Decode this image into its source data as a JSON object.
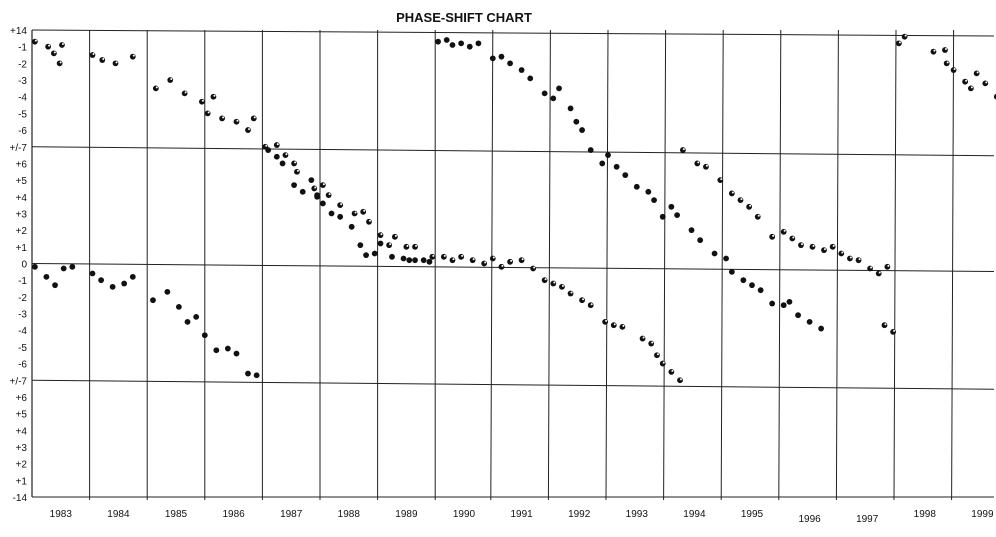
{
  "chart_data": {
    "type": "scatter",
    "title": "PHASE-SHIFT CHART",
    "xlabel": "",
    "ylabel": "",
    "x_tick_labels": [
      "1983",
      "1984",
      "1985",
      "1986",
      "1987",
      "1988",
      "1989",
      "1990",
      "1991",
      "1992",
      "1993",
      "1994",
      "1995",
      "1996",
      "1997",
      "1998",
      "1999"
    ],
    "y_tick_labels": [
      "+14",
      "-1",
      "-2",
      "-3",
      "-4",
      "-5",
      "-6",
      "+/-7",
      "+6",
      "+5",
      "+4",
      "+3",
      "+2",
      "+1",
      "0",
      "-1",
      "-2",
      "-3",
      "-4",
      "-5",
      "-6",
      "+/-7",
      "+6",
      "+5",
      "+4",
      "+3",
      "+2",
      "+1",
      "-14"
    ],
    "xlim": [
      1983,
      2000
    ],
    "ylim": [
      -14,
      14
    ],
    "grid": true,
    "series": [
      {
        "values": [
          [
            1983.05,
            13.3
          ],
          [
            1983.28,
            13.0
          ],
          [
            1983.38,
            12.6
          ],
          [
            1983.52,
            13.1
          ],
          [
            1983.48,
            12.0
          ],
          [
            1984.05,
            12.5
          ],
          [
            1984.22,
            12.2
          ],
          [
            1984.45,
            12.0
          ],
          [
            1984.75,
            12.4
          ],
          [
            1985.15,
            10.5
          ],
          [
            1985.4,
            11.0
          ],
          [
            1985.65,
            10.2
          ],
          [
            1985.95,
            9.7
          ],
          [
            1986.05,
            9.0
          ],
          [
            1986.15,
            10.0
          ],
          [
            1986.3,
            8.7
          ],
          [
            1986.55,
            8.5
          ],
          [
            1986.75,
            8.0
          ],
          [
            1986.85,
            8.7
          ],
          [
            1987.05,
            7.0
          ],
          [
            1987.25,
            7.1
          ],
          [
            1987.4,
            6.5
          ],
          [
            1987.55,
            6.0
          ],
          [
            1987.6,
            5.5
          ],
          [
            1987.9,
            4.5
          ],
          [
            1987.95,
            4.0
          ],
          [
            1988.05,
            4.7
          ],
          [
            1988.15,
            4.1
          ],
          [
            1988.35,
            3.5
          ],
          [
            1988.6,
            3.0
          ],
          [
            1988.75,
            3.1
          ],
          [
            1988.85,
            2.5
          ],
          [
            1989.05,
            1.7
          ],
          [
            1989.2,
            1.1
          ],
          [
            1989.3,
            1.6
          ],
          [
            1989.5,
            1.0
          ],
          [
            1989.65,
            1.0
          ],
          [
            1989.95,
            0.4
          ],
          [
            1990.15,
            0.4
          ],
          [
            1990.3,
            0.2
          ],
          [
            1990.45,
            0.4
          ],
          [
            1990.65,
            0.2
          ],
          [
            1990.85,
            0.0
          ],
          [
            1991.0,
            0.3
          ],
          [
            1991.15,
            -0.2
          ],
          [
            1991.3,
            0.1
          ],
          [
            1991.5,
            0.2
          ],
          [
            1991.7,
            -0.3
          ],
          [
            1991.9,
            -1.0
          ],
          [
            1992.05,
            -1.2
          ],
          [
            1992.2,
            -1.4
          ],
          [
            1992.35,
            -1.8
          ],
          [
            1992.55,
            -2.2
          ],
          [
            1992.7,
            -2.5
          ],
          [
            1992.95,
            -3.5
          ],
          [
            1993.1,
            -3.7
          ],
          [
            1993.25,
            -3.8
          ],
          [
            1993.6,
            -4.5
          ],
          [
            1993.75,
            -4.8
          ],
          [
            1993.85,
            -5.5
          ],
          [
            1993.95,
            -6.0
          ],
          [
            1994.1,
            -6.5
          ],
          [
            1994.25,
            -7.0
          ],
          [
            1994.3,
            6.8
          ],
          [
            1994.55,
            6.0
          ],
          [
            1994.7,
            5.8
          ],
          [
            1994.95,
            5.0
          ],
          [
            1995.15,
            4.2
          ],
          [
            1995.3,
            3.8
          ],
          [
            1995.45,
            3.4
          ],
          [
            1995.6,
            2.8
          ],
          [
            1995.85,
            1.6
          ],
          [
            1996.05,
            1.9
          ],
          [
            1996.2,
            1.5
          ],
          [
            1996.35,
            1.1
          ],
          [
            1996.55,
            1.0
          ],
          [
            1996.75,
            0.8
          ],
          [
            1996.9,
            1.0
          ],
          [
            1997.05,
            0.6
          ],
          [
            1997.2,
            0.3
          ],
          [
            1997.35,
            0.2
          ],
          [
            1997.55,
            -0.3
          ],
          [
            1997.7,
            -0.6
          ],
          [
            1997.85,
            -0.2
          ],
          [
            1997.8,
            -3.7
          ],
          [
            1997.95,
            -4.1
          ],
          [
            1998.05,
            13.2
          ],
          [
            1998.15,
            13.6
          ],
          [
            1998.65,
            12.7
          ],
          [
            1998.85,
            12.8
          ],
          [
            1998.88,
            12.0
          ],
          [
            1999.0,
            11.6
          ],
          [
            1999.2,
            10.9
          ],
          [
            1999.3,
            10.5
          ],
          [
            1999.4,
            11.4
          ],
          [
            1999.55,
            10.8
          ],
          [
            1999.75,
            10.0
          ],
          [
            1999.9,
            8.9
          ]
        ]
      },
      {
        "values": [
          [
            1983.05,
            -0.2
          ],
          [
            1983.25,
            -0.8
          ],
          [
            1983.4,
            -1.3
          ],
          [
            1983.55,
            -0.3
          ],
          [
            1983.7,
            -0.2
          ],
          [
            1984.05,
            -0.6
          ],
          [
            1984.2,
            -1.0
          ],
          [
            1984.4,
            -1.4
          ],
          [
            1984.6,
            -1.2
          ],
          [
            1984.75,
            -0.8
          ],
          [
            1985.1,
            -2.2
          ],
          [
            1985.35,
            -1.7
          ],
          [
            1985.55,
            -2.6
          ],
          [
            1985.7,
            -3.5
          ],
          [
            1985.85,
            -3.2
          ],
          [
            1986.0,
            -4.3
          ],
          [
            1986.2,
            -5.2
          ],
          [
            1986.4,
            -5.1
          ],
          [
            1986.55,
            -5.4
          ],
          [
            1986.75,
            -6.6
          ],
          [
            1986.9,
            -6.7
          ],
          [
            1987.1,
            6.8
          ],
          [
            1987.25,
            6.4
          ],
          [
            1987.35,
            6.0
          ],
          [
            1987.55,
            4.7
          ],
          [
            1987.7,
            4.3
          ],
          [
            1987.85,
            5.0
          ],
          [
            1987.95,
            4.1
          ],
          [
            1988.05,
            3.6
          ],
          [
            1988.2,
            3.0
          ],
          [
            1988.35,
            2.8
          ],
          [
            1988.55,
            2.2
          ],
          [
            1988.7,
            1.1
          ],
          [
            1988.8,
            0.5
          ],
          [
            1988.95,
            0.6
          ],
          [
            1989.05,
            1.2
          ],
          [
            1989.25,
            0.4
          ],
          [
            1989.45,
            0.3
          ],
          [
            1989.55,
            0.2
          ],
          [
            1989.65,
            0.2
          ],
          [
            1989.8,
            0.2
          ],
          [
            1989.9,
            0.1
          ],
          [
            1990.05,
            13.3
          ],
          [
            1990.2,
            13.4
          ],
          [
            1990.3,
            13.1
          ],
          [
            1990.45,
            13.2
          ],
          [
            1990.6,
            13.0
          ],
          [
            1990.75,
            13.2
          ],
          [
            1991.0,
            12.3
          ],
          [
            1991.15,
            12.4
          ],
          [
            1991.3,
            12.0
          ],
          [
            1991.5,
            11.6
          ],
          [
            1991.65,
            11.1
          ],
          [
            1991.9,
            10.2
          ],
          [
            1992.05,
            9.9
          ],
          [
            1992.15,
            10.5
          ],
          [
            1992.35,
            9.3
          ],
          [
            1992.45,
            8.5
          ],
          [
            1992.55,
            8.0
          ],
          [
            1992.7,
            6.8
          ],
          [
            1992.9,
            6.0
          ],
          [
            1993.0,
            6.5
          ],
          [
            1993.15,
            5.8
          ],
          [
            1993.3,
            5.3
          ],
          [
            1993.5,
            4.6
          ],
          [
            1993.7,
            4.3
          ],
          [
            1993.8,
            3.8
          ],
          [
            1993.95,
            2.8
          ],
          [
            1994.1,
            3.4
          ],
          [
            1994.2,
            2.9
          ],
          [
            1994.45,
            2.0
          ],
          [
            1994.6,
            1.4
          ],
          [
            1994.85,
            0.6
          ],
          [
            1995.05,
            0.3
          ],
          [
            1995.15,
            -0.5
          ],
          [
            1995.35,
            -1.0
          ],
          [
            1995.5,
            -1.3
          ],
          [
            1995.65,
            -1.6
          ],
          [
            1995.85,
            -2.4
          ],
          [
            1996.05,
            -2.5
          ],
          [
            1996.15,
            -2.3
          ],
          [
            1996.3,
            -3.1
          ],
          [
            1996.5,
            -3.5
          ],
          [
            1996.7,
            -3.9
          ]
        ]
      }
    ]
  }
}
